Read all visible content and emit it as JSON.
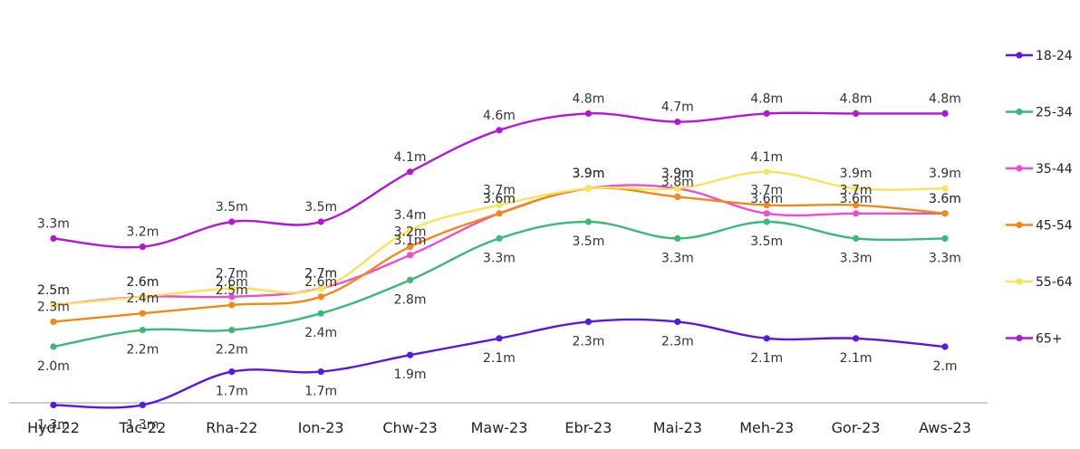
{
  "chart_data": {
    "type": "line",
    "title": "",
    "xlabel": "",
    "ylabel": "",
    "categories": [
      "Hyd-22",
      "Tac-22",
      "Rha-22",
      "Ion-23",
      "Chw-23",
      "Maw-23",
      "Ebr-23",
      "Mai-23",
      "Meh-23",
      "Gor-23",
      "Aws-23"
    ],
    "ylim": [
      0,
      5.2
    ],
    "grid": false,
    "legend_position": "right",
    "series": [
      {
        "name": "18-24",
        "color": "#5b16e0",
        "values": [
          1.3,
          1.3,
          1.7,
          1.7,
          1.9,
          2.1,
          2.3,
          2.3,
          2.1,
          2.1,
          2.0
        ],
        "labels": [
          "1.3m",
          "1.3m",
          "1.7m",
          "1.7m",
          "1.9m",
          "2.1m",
          "2.3m",
          "2.3m",
          "2.1m",
          "2.1m",
          "2.m"
        ],
        "label_pos": "below"
      },
      {
        "name": "25-34",
        "color": "#3cb878",
        "values": [
          2.0,
          2.2,
          2.2,
          2.4,
          2.8,
          3.3,
          3.5,
          3.3,
          3.5,
          3.3,
          3.3
        ],
        "labels": [
          "2.0m",
          "2.2m",
          "2.2m",
          "2.4m",
          "2.8m",
          "3.3m",
          "3.5m",
          "3.3m",
          "3.5m",
          "3.3m",
          "3.3m"
        ],
        "label_pos": "below"
      },
      {
        "name": "35-44",
        "color": "#f04ccf",
        "values": [
          2.5,
          2.6,
          2.6,
          2.7,
          3.1,
          3.6,
          3.9,
          3.9,
          3.6,
          3.6,
          3.6
        ],
        "labels": [
          "2.5m",
          "2.6m",
          "2.6m",
          "2.7m",
          "3.1m",
          "3.6m",
          "3.9m",
          "3.9m",
          "3.6m",
          "3.6m",
          "3.6m"
        ],
        "label_pos": "above"
      },
      {
        "name": "45-54",
        "color": "#f0891a",
        "values": [
          2.3,
          2.4,
          2.5,
          2.6,
          3.2,
          3.6,
          3.9,
          3.8,
          3.7,
          3.7,
          3.6
        ],
        "labels": [
          "2.3m",
          "2.4m",
          "2.5m",
          "2.6m",
          "3.2m",
          "3.6m",
          "3.9m",
          "3.8m",
          "3.7m",
          "3.7m",
          "3.6m"
        ],
        "label_pos": "above"
      },
      {
        "name": "55-64",
        "color": "#f5e35a",
        "values": [
          2.5,
          2.6,
          2.7,
          2.7,
          3.4,
          3.7,
          3.9,
          3.9,
          4.1,
          3.9,
          3.9
        ],
        "labels": [
          "2.5m",
          "2.6m",
          "2.7m",
          "2.7m",
          "3.4m",
          "3.7m",
          "3.9m",
          "3.9m",
          "4.1m",
          "3.9m",
          "3.9m"
        ],
        "label_pos": "above"
      },
      {
        "name": "65+",
        "color": "#b416d8",
        "values": [
          3.3,
          3.2,
          3.5,
          3.5,
          4.1,
          4.6,
          4.8,
          4.7,
          4.8,
          4.8,
          4.8
        ],
        "labels": [
          "3.3m",
          "3.2m",
          "3.5m",
          "3.5m",
          "4.1m",
          "4.6m",
          "4.8m",
          "4.7m",
          "4.8m",
          "4.8m",
          "4.8m"
        ],
        "label_pos": "above"
      }
    ]
  }
}
